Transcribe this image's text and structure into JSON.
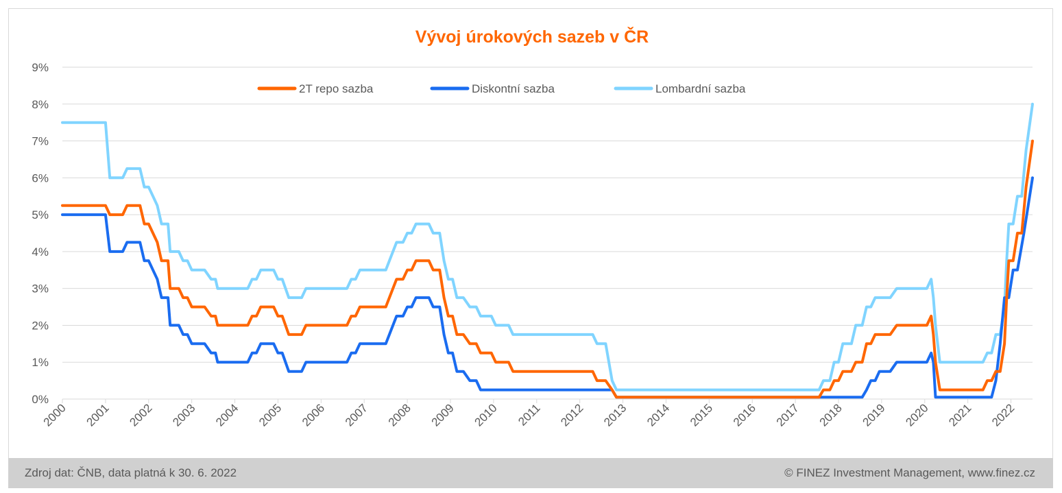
{
  "footer": {
    "source": "Zdroj dat: ČNB, data platná k 30. 6. 2022",
    "copyright": "© FINEZ Investment Management, www.finez.cz"
  },
  "colors": {
    "repo": "#ff6600",
    "discount": "#1a6cf0",
    "lombard": "#80d4ff",
    "title": "#ff6600",
    "grid": "#d9d9d9",
    "footer_bg": "#d0d0d0"
  },
  "chart_data": {
    "type": "line",
    "title": "Vývoj úrokových sazeb v ČR",
    "xlabel": "",
    "ylabel": "",
    "x_ticks": [
      "2000",
      "2001",
      "2002",
      "2003",
      "2004",
      "2005",
      "2006",
      "2007",
      "2008",
      "2009",
      "2010",
      "2011",
      "2012",
      "2013",
      "2014",
      "2015",
      "2016",
      "2017",
      "2018",
      "2019",
      "2020",
      "2021",
      "2022"
    ],
    "y_ticks": [
      "0%",
      "1%",
      "2%",
      "3%",
      "4%",
      "5%",
      "6%",
      "7%",
      "8%",
      "9%"
    ],
    "xlim": [
      2000,
      2022.5
    ],
    "ylim": [
      0,
      9
    ],
    "grid": "horizontal",
    "legend_position": "top-center",
    "series": [
      {
        "name": "2T repo sazba",
        "key": "repo",
        "points": [
          [
            2000.0,
            5.25
          ],
          [
            2001.0,
            5.25
          ],
          [
            2001.1,
            5.0
          ],
          [
            2001.4,
            5.0
          ],
          [
            2001.5,
            5.25
          ],
          [
            2001.8,
            5.25
          ],
          [
            2001.9,
            4.75
          ],
          [
            2002.0,
            4.75
          ],
          [
            2002.1,
            4.5
          ],
          [
            2002.2,
            4.25
          ],
          [
            2002.3,
            3.75
          ],
          [
            2002.45,
            3.75
          ],
          [
            2002.5,
            3.0
          ],
          [
            2002.7,
            3.0
          ],
          [
            2002.8,
            2.75
          ],
          [
            2002.9,
            2.75
          ],
          [
            2003.0,
            2.5
          ],
          [
            2003.3,
            2.5
          ],
          [
            2003.45,
            2.25
          ],
          [
            2003.55,
            2.25
          ],
          [
            2003.6,
            2.0
          ],
          [
            2004.3,
            2.0
          ],
          [
            2004.4,
            2.25
          ],
          [
            2004.5,
            2.25
          ],
          [
            2004.6,
            2.5
          ],
          [
            2004.9,
            2.5
          ],
          [
            2005.0,
            2.25
          ],
          [
            2005.1,
            2.25
          ],
          [
            2005.25,
            1.75
          ],
          [
            2005.55,
            1.75
          ],
          [
            2005.65,
            2.0
          ],
          [
            2006.6,
            2.0
          ],
          [
            2006.7,
            2.25
          ],
          [
            2006.8,
            2.25
          ],
          [
            2006.9,
            2.5
          ],
          [
            2007.5,
            2.5
          ],
          [
            2007.75,
            3.25
          ],
          [
            2007.9,
            3.25
          ],
          [
            2008.0,
            3.5
          ],
          [
            2008.1,
            3.5
          ],
          [
            2008.2,
            3.75
          ],
          [
            2008.5,
            3.75
          ],
          [
            2008.6,
            3.5
          ],
          [
            2008.75,
            3.5
          ],
          [
            2008.85,
            2.75
          ],
          [
            2008.95,
            2.25
          ],
          [
            2009.05,
            2.25
          ],
          [
            2009.15,
            1.75
          ],
          [
            2009.3,
            1.75
          ],
          [
            2009.45,
            1.5
          ],
          [
            2009.6,
            1.5
          ],
          [
            2009.7,
            1.25
          ],
          [
            2009.95,
            1.25
          ],
          [
            2010.05,
            1.0
          ],
          [
            2010.35,
            1.0
          ],
          [
            2010.45,
            0.75
          ],
          [
            2012.2,
            0.75
          ],
          [
            2012.3,
            0.75
          ],
          [
            2012.4,
            0.5
          ],
          [
            2012.6,
            0.5
          ],
          [
            2012.75,
            0.25
          ],
          [
            2012.85,
            0.05
          ],
          [
            2017.55,
            0.05
          ],
          [
            2017.65,
            0.25
          ],
          [
            2017.8,
            0.25
          ],
          [
            2017.9,
            0.5
          ],
          [
            2018.0,
            0.5
          ],
          [
            2018.1,
            0.75
          ],
          [
            2018.3,
            0.75
          ],
          [
            2018.4,
            1.0
          ],
          [
            2018.55,
            1.0
          ],
          [
            2018.65,
            1.5
          ],
          [
            2018.75,
            1.5
          ],
          [
            2018.85,
            1.75
          ],
          [
            2019.2,
            1.75
          ],
          [
            2019.35,
            2.0
          ],
          [
            2020.05,
            2.0
          ],
          [
            2020.15,
            2.25
          ],
          [
            2020.2,
            1.75
          ],
          [
            2020.25,
            1.0
          ],
          [
            2020.35,
            0.25
          ],
          [
            2021.35,
            0.25
          ],
          [
            2021.45,
            0.5
          ],
          [
            2021.55,
            0.5
          ],
          [
            2021.65,
            0.75
          ],
          [
            2021.75,
            0.75
          ],
          [
            2021.85,
            1.5
          ],
          [
            2021.9,
            2.75
          ],
          [
            2021.95,
            3.75
          ],
          [
            2022.05,
            3.75
          ],
          [
            2022.15,
            4.5
          ],
          [
            2022.25,
            4.5
          ],
          [
            2022.35,
            5.75
          ],
          [
            2022.5,
            7.0
          ]
        ]
      },
      {
        "name": "Diskontní sazba",
        "key": "discount",
        "points": [
          [
            2000.0,
            5.0
          ],
          [
            2001.0,
            5.0
          ],
          [
            2001.1,
            4.0
          ],
          [
            2001.4,
            4.0
          ],
          [
            2001.5,
            4.25
          ],
          [
            2001.8,
            4.25
          ],
          [
            2001.9,
            3.75
          ],
          [
            2002.0,
            3.75
          ],
          [
            2002.1,
            3.5
          ],
          [
            2002.2,
            3.25
          ],
          [
            2002.3,
            2.75
          ],
          [
            2002.45,
            2.75
          ],
          [
            2002.5,
            2.0
          ],
          [
            2002.7,
            2.0
          ],
          [
            2002.8,
            1.75
          ],
          [
            2002.9,
            1.75
          ],
          [
            2003.0,
            1.5
          ],
          [
            2003.3,
            1.5
          ],
          [
            2003.45,
            1.25
          ],
          [
            2003.55,
            1.25
          ],
          [
            2003.6,
            1.0
          ],
          [
            2004.3,
            1.0
          ],
          [
            2004.4,
            1.25
          ],
          [
            2004.5,
            1.25
          ],
          [
            2004.6,
            1.5
          ],
          [
            2004.9,
            1.5
          ],
          [
            2005.0,
            1.25
          ],
          [
            2005.1,
            1.25
          ],
          [
            2005.25,
            0.75
          ],
          [
            2005.55,
            0.75
          ],
          [
            2005.65,
            1.0
          ],
          [
            2006.6,
            1.0
          ],
          [
            2006.7,
            1.25
          ],
          [
            2006.8,
            1.25
          ],
          [
            2006.9,
            1.5
          ],
          [
            2007.5,
            1.5
          ],
          [
            2007.75,
            2.25
          ],
          [
            2007.9,
            2.25
          ],
          [
            2008.0,
            2.5
          ],
          [
            2008.1,
            2.5
          ],
          [
            2008.2,
            2.75
          ],
          [
            2008.5,
            2.75
          ],
          [
            2008.6,
            2.5
          ],
          [
            2008.75,
            2.5
          ],
          [
            2008.85,
            1.75
          ],
          [
            2008.95,
            1.25
          ],
          [
            2009.05,
            1.25
          ],
          [
            2009.15,
            0.75
          ],
          [
            2009.3,
            0.75
          ],
          [
            2009.45,
            0.5
          ],
          [
            2009.6,
            0.5
          ],
          [
            2009.7,
            0.25
          ],
          [
            2012.75,
            0.25
          ],
          [
            2012.85,
            0.05
          ],
          [
            2018.55,
            0.05
          ],
          [
            2018.65,
            0.25
          ],
          [
            2018.75,
            0.5
          ],
          [
            2018.85,
            0.5
          ],
          [
            2018.95,
            0.75
          ],
          [
            2019.2,
            0.75
          ],
          [
            2019.35,
            1.0
          ],
          [
            2020.05,
            1.0
          ],
          [
            2020.15,
            1.25
          ],
          [
            2020.2,
            1.0
          ],
          [
            2020.25,
            0.05
          ],
          [
            2021.55,
            0.05
          ],
          [
            2021.65,
            0.5
          ],
          [
            2021.75,
            1.5
          ],
          [
            2021.85,
            2.75
          ],
          [
            2021.95,
            2.75
          ],
          [
            2022.05,
            3.5
          ],
          [
            2022.15,
            3.5
          ],
          [
            2022.3,
            4.5
          ],
          [
            2022.5,
            6.0
          ]
        ]
      },
      {
        "name": "Lombardní sazba",
        "key": "lombard",
        "points": [
          [
            2000.0,
            7.5
          ],
          [
            2001.0,
            7.5
          ],
          [
            2001.1,
            6.0
          ],
          [
            2001.4,
            6.0
          ],
          [
            2001.5,
            6.25
          ],
          [
            2001.8,
            6.25
          ],
          [
            2001.9,
            5.75
          ],
          [
            2002.0,
            5.75
          ],
          [
            2002.1,
            5.5
          ],
          [
            2002.2,
            5.25
          ],
          [
            2002.3,
            4.75
          ],
          [
            2002.45,
            4.75
          ],
          [
            2002.5,
            4.0
          ],
          [
            2002.7,
            4.0
          ],
          [
            2002.8,
            3.75
          ],
          [
            2002.9,
            3.75
          ],
          [
            2003.0,
            3.5
          ],
          [
            2003.3,
            3.5
          ],
          [
            2003.45,
            3.25
          ],
          [
            2003.55,
            3.25
          ],
          [
            2003.6,
            3.0
          ],
          [
            2004.3,
            3.0
          ],
          [
            2004.4,
            3.25
          ],
          [
            2004.5,
            3.25
          ],
          [
            2004.6,
            3.5
          ],
          [
            2004.9,
            3.5
          ],
          [
            2005.0,
            3.25
          ],
          [
            2005.1,
            3.25
          ],
          [
            2005.25,
            2.75
          ],
          [
            2005.55,
            2.75
          ],
          [
            2005.65,
            3.0
          ],
          [
            2006.6,
            3.0
          ],
          [
            2006.7,
            3.25
          ],
          [
            2006.8,
            3.25
          ],
          [
            2006.9,
            3.5
          ],
          [
            2007.5,
            3.5
          ],
          [
            2007.75,
            4.25
          ],
          [
            2007.9,
            4.25
          ],
          [
            2008.0,
            4.5
          ],
          [
            2008.1,
            4.5
          ],
          [
            2008.2,
            4.75
          ],
          [
            2008.5,
            4.75
          ],
          [
            2008.6,
            4.5
          ],
          [
            2008.75,
            4.5
          ],
          [
            2008.85,
            3.75
          ],
          [
            2008.95,
            3.25
          ],
          [
            2009.05,
            3.25
          ],
          [
            2009.15,
            2.75
          ],
          [
            2009.3,
            2.75
          ],
          [
            2009.45,
            2.5
          ],
          [
            2009.6,
            2.5
          ],
          [
            2009.7,
            2.25
          ],
          [
            2009.95,
            2.25
          ],
          [
            2010.05,
            2.0
          ],
          [
            2010.35,
            2.0
          ],
          [
            2010.45,
            1.75
          ],
          [
            2012.2,
            1.75
          ],
          [
            2012.3,
            1.75
          ],
          [
            2012.4,
            1.5
          ],
          [
            2012.6,
            1.5
          ],
          [
            2012.75,
            0.5
          ],
          [
            2012.85,
            0.25
          ],
          [
            2017.55,
            0.25
          ],
          [
            2017.65,
            0.5
          ],
          [
            2017.8,
            0.5
          ],
          [
            2017.9,
            1.0
          ],
          [
            2018.0,
            1.0
          ],
          [
            2018.1,
            1.5
          ],
          [
            2018.3,
            1.5
          ],
          [
            2018.4,
            2.0
          ],
          [
            2018.55,
            2.0
          ],
          [
            2018.65,
            2.5
          ],
          [
            2018.75,
            2.5
          ],
          [
            2018.85,
            2.75
          ],
          [
            2019.2,
            2.75
          ],
          [
            2019.35,
            3.0
          ],
          [
            2020.05,
            3.0
          ],
          [
            2020.15,
            3.25
          ],
          [
            2020.2,
            2.75
          ],
          [
            2020.25,
            2.0
          ],
          [
            2020.35,
            1.0
          ],
          [
            2021.35,
            1.0
          ],
          [
            2021.45,
            1.25
          ],
          [
            2021.55,
            1.25
          ],
          [
            2021.65,
            1.75
          ],
          [
            2021.75,
            1.75
          ],
          [
            2021.85,
            2.5
          ],
          [
            2021.9,
            3.75
          ],
          [
            2021.95,
            4.75
          ],
          [
            2022.05,
            4.75
          ],
          [
            2022.15,
            5.5
          ],
          [
            2022.25,
            5.5
          ],
          [
            2022.35,
            6.75
          ],
          [
            2022.5,
            8.0
          ]
        ]
      }
    ]
  }
}
